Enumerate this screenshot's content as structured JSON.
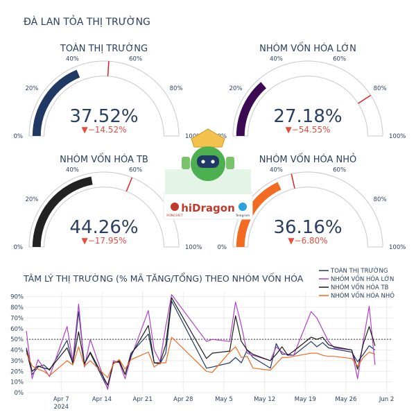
{
  "page_title": "ĐÀ LAN TỎA THỊ TRƯỜNG",
  "logo": {
    "brand": "hiDragon",
    "left_badge": "RONGVIET",
    "right_badge": "Telegram"
  },
  "colors": {
    "text": "#2a3f5f",
    "gauge_bg": "#ffffff",
    "gauge_border": "#c8c8c8",
    "threshold": "#e02020",
    "delta_down": "#e74c3c"
  },
  "chart_data": [
    {
      "type": "gauge",
      "title": "TOÀN THỊ TRƯỜNG",
      "value": 37.52,
      "value_text": "37.52%",
      "delta_text": "▼−14.52%",
      "reference": 52.04,
      "range": [
        0,
        100
      ],
      "tick_labels": [
        "0%",
        "20%",
        "40%",
        "60%",
        "80%",
        "100%"
      ],
      "color": "#1f3864"
    },
    {
      "type": "gauge",
      "title": "NHÓM VỐN HÓA LỚN",
      "value": 27.18,
      "value_text": "27.18%",
      "delta_text": "▼−54.55%",
      "reference": 81.73,
      "range": [
        0,
        100
      ],
      "tick_labels": [
        "0%",
        "20%",
        "40%",
        "60%",
        "80%",
        "100%"
      ],
      "color": "#3b0a52"
    },
    {
      "type": "gauge",
      "title": "NHÓM VỐN HÓA TB",
      "value": 44.26,
      "value_text": "44.26%",
      "delta_text": "▼−17.95%",
      "reference": 62.21,
      "range": [
        0,
        100
      ],
      "tick_labels": [
        "0%",
        "20%",
        "40%",
        "60%",
        "80%",
        "100%"
      ],
      "color": "#222222"
    },
    {
      "type": "gauge",
      "title": "NHÓM VỐN HÓA NHỎ",
      "value": 36.16,
      "value_text": "36.16%",
      "delta_text": "▼−6.80%",
      "reference": 42.96,
      "range": [
        0,
        100
      ],
      "tick_labels": [
        "0%",
        "20%",
        "40%",
        "60%",
        "80%",
        "100%"
      ],
      "color": "#f26b21"
    },
    {
      "type": "line",
      "title": "TÂM LÝ THỊ TRƯỜNG (% MÃ TĂNG/TỔNG) THEO NHÓM VỐN HÓA",
      "xlim": [
        "2024-04-01",
        "2024-06-03"
      ],
      "ylim": [
        0,
        95
      ],
      "y_ticks": [
        0,
        10,
        20,
        30,
        40,
        50,
        60,
        70,
        80,
        90
      ],
      "y_tick_labels": [
        "0%",
        "10%",
        "20%",
        "30%",
        "40%",
        "50%",
        "60%",
        "70%",
        "80%",
        "90%"
      ],
      "x_ticks": [
        "2024-04-07",
        "2024-04-14",
        "2024-04-21",
        "2024-04-28",
        "2024-05-05",
        "2024-05-12",
        "2024-05-19",
        "2024-05-26",
        "2024-06-02"
      ],
      "x_tick_labels": [
        "Apr 7",
        "Apr 14",
        "Apr 21",
        "Apr 28",
        "May 5",
        "May 12",
        "May 19",
        "May 26",
        "Jun 2"
      ],
      "x_tick_sublabel": "2024",
      "reference_line": 50,
      "grid": true,
      "legend_position": "top-right",
      "x": [
        "2024-04-01",
        "2024-04-02",
        "2024-04-03",
        "2024-04-04",
        "2024-04-05",
        "2024-04-08",
        "2024-04-09",
        "2024-04-10",
        "2024-04-11",
        "2024-04-12",
        "2024-04-15",
        "2024-04-16",
        "2024-04-17",
        "2024-04-18",
        "2024-04-19",
        "2024-04-22",
        "2024-04-23",
        "2024-04-24",
        "2024-04-25",
        "2024-04-26",
        "2024-05-02",
        "2024-05-03",
        "2024-05-06",
        "2024-05-07",
        "2024-05-08",
        "2024-05-09",
        "2024-05-10",
        "2024-05-13",
        "2024-05-14",
        "2024-05-15",
        "2024-05-16",
        "2024-05-17",
        "2024-05-20",
        "2024-05-21",
        "2024-05-22",
        "2024-05-23",
        "2024-05-24",
        "2024-05-27",
        "2024-05-28",
        "2024-05-29",
        "2024-05-30",
        "2024-05-31"
      ],
      "series": [
        {
          "name": "TOÀN THỊ TRƯỜNG",
          "color": "#1f3864",
          "values": [
            40,
            17,
            24,
            26,
            21,
            49,
            27,
            76,
            27,
            37,
            4,
            28,
            30,
            17,
            37,
            55,
            28,
            27,
            37,
            86,
            23,
            24,
            28,
            33,
            28,
            40,
            33,
            23,
            46,
            36,
            36,
            35,
            48,
            43,
            47,
            42,
            41,
            38,
            29,
            36,
            44,
            40
          ]
        },
        {
          "name": "NHÓM VỐN HÓA LỚN",
          "color": "#b040c8",
          "values": [
            58,
            13,
            31,
            23,
            15,
            62,
            30,
            83,
            24,
            50,
            3,
            30,
            28,
            13,
            33,
            77,
            40,
            29,
            62,
            92,
            48,
            50,
            48,
            85,
            63,
            37,
            35,
            30,
            43,
            38,
            35,
            35,
            76,
            70,
            59,
            48,
            42,
            40,
            13,
            49,
            81,
            26
          ]
        },
        {
          "name": "NHÓM VỐN HÓA TB",
          "color": "#1a1a1a",
          "values": [
            42,
            20,
            25,
            23,
            22,
            42,
            28,
            57,
            27,
            38,
            7,
            28,
            29,
            17,
            35,
            63,
            28,
            28,
            45,
            89,
            32,
            37,
            39,
            72,
            48,
            40,
            36,
            30,
            36,
            43,
            35,
            39,
            52,
            50,
            52,
            45,
            43,
            40,
            22,
            46,
            62,
            44
          ]
        },
        {
          "name": "NHÓM VỐN HÓA NHỎ",
          "color": "#f26b21",
          "values": [
            37,
            25,
            22,
            20,
            16,
            30,
            26,
            43,
            25,
            30,
            14,
            27,
            31,
            22,
            31,
            38,
            24,
            28,
            28,
            52,
            20,
            19,
            38,
            43,
            33,
            34,
            23,
            21,
            27,
            33,
            33,
            34,
            37,
            37,
            35,
            34,
            34,
            32,
            25,
            33,
            38,
            36
          ]
        }
      ]
    }
  ]
}
